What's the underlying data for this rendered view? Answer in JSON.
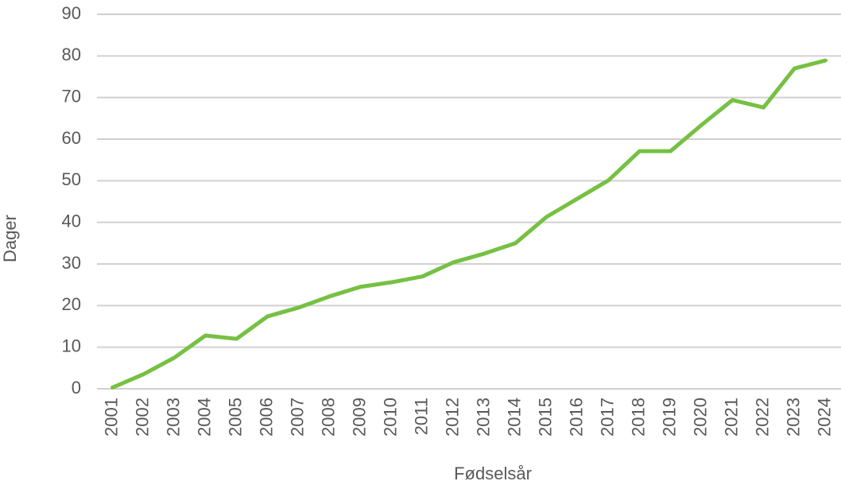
{
  "chart_data": {
    "type": "line",
    "x_label": "Fødselsår",
    "y_label": "Dager",
    "categories": [
      "2001",
      "2002",
      "2003",
      "2004",
      "2005",
      "2006",
      "2007",
      "2008",
      "2009",
      "2010",
      "2011",
      "2012",
      "2013",
      "2014",
      "2015",
      "2016",
      "2017",
      "2018",
      "2019",
      "2020",
      "2021",
      "2022",
      "2023",
      "2024"
    ],
    "values": [
      0.3,
      3.5,
      7.5,
      12.8,
      12.0,
      17.4,
      19.5,
      22.2,
      24.5,
      25.6,
      27.0,
      30.4,
      32.5,
      35.0,
      41.3,
      45.7,
      50.1,
      57.1,
      57.1,
      63.4,
      69.4,
      67.6,
      77.0,
      78.9
    ],
    "color": "#76c043",
    "ylim": [
      0,
      90
    ],
    "yticks": [
      0,
      10,
      20,
      30,
      40,
      50,
      60,
      70,
      80,
      90
    ],
    "grid": true
  }
}
